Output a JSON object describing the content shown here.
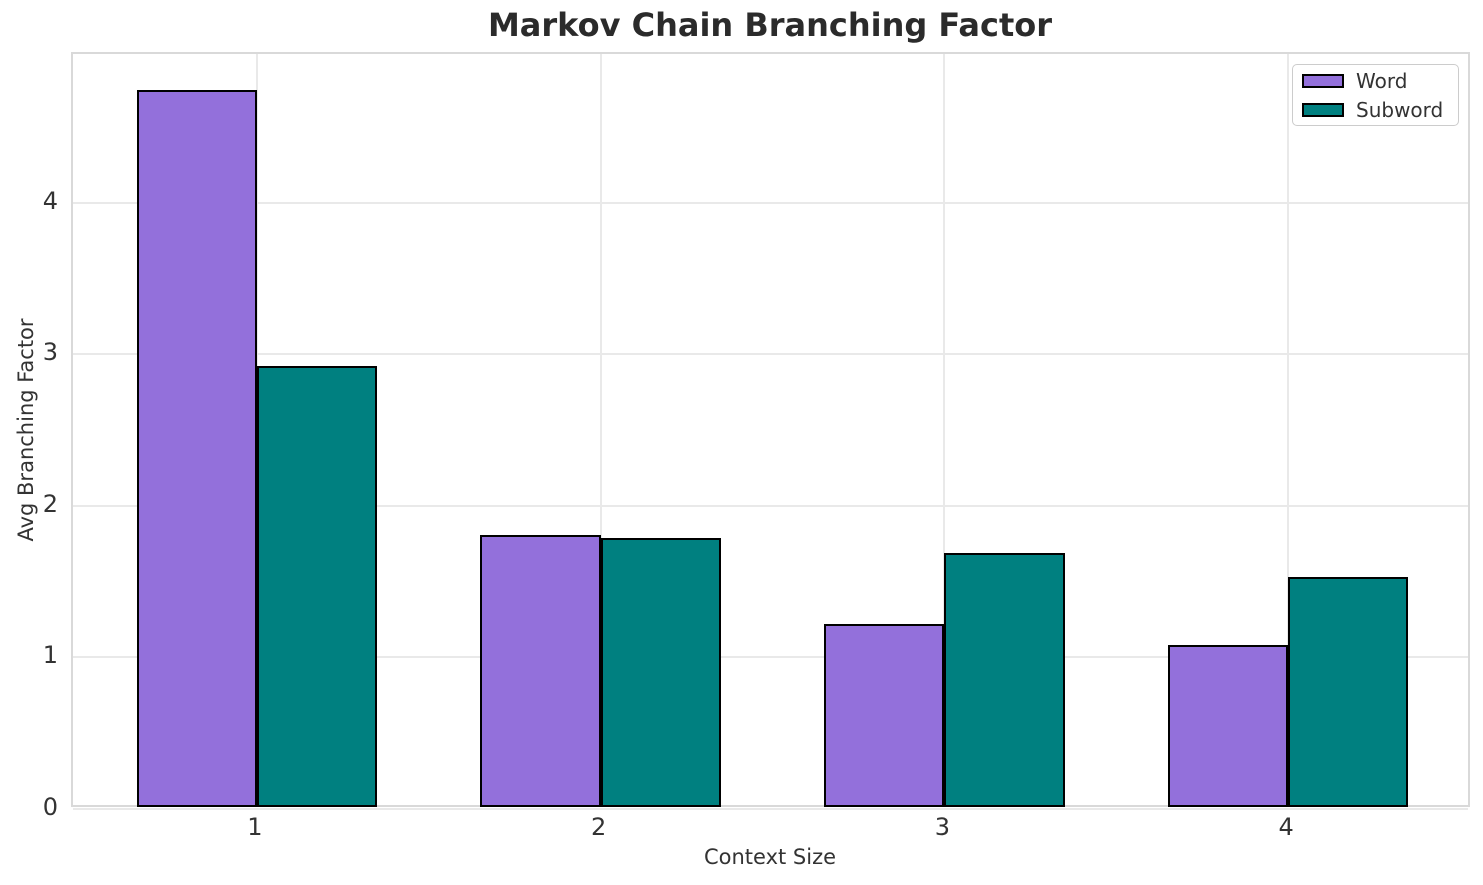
{
  "chart_data": {
    "type": "bar",
    "title": "Markov Chain Branching Factor",
    "xlabel": "Context Size",
    "ylabel": "Avg Branching Factor",
    "categories": [
      1,
      2,
      3,
      4
    ],
    "series": [
      {
        "name": "Word",
        "color": "#9370DB",
        "values": [
          4.74,
          1.81,
          1.22,
          1.08
        ]
      },
      {
        "name": "Subword",
        "color": "#008080",
        "values": [
          2.92,
          1.79,
          1.69,
          1.53
        ]
      }
    ],
    "bar_width": 0.35,
    "bar_edge_color": "#000000",
    "xticks": [
      1,
      2,
      3,
      4
    ],
    "yticks": [
      0,
      1,
      2,
      3,
      4
    ],
    "xlim": [
      0.465,
      4.535
    ],
    "ylim": [
      0,
      4.98
    ],
    "grid": true,
    "legend_position": "upper right"
  },
  "colors": {
    "background": "#ffffff",
    "grid": "#e9e9e9",
    "spine": "#d9d9d9",
    "title_text": "#2b2b2b",
    "tick_text": "#333333",
    "legend_border": "#cccccc"
  }
}
